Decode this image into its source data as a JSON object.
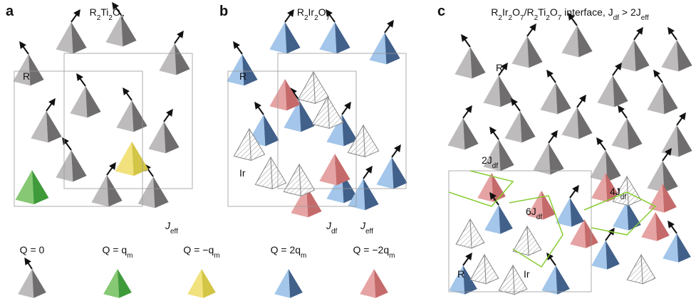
{
  "panels": [
    {
      "label": "a",
      "title": [
        "R",
        "2",
        "Ti",
        "2",
        "O",
        "7"
      ],
      "site": [
        "R"
      ],
      "coupling": [
        "J",
        "eff"
      ]
    },
    {
      "label": "b",
      "title": [
        "R",
        "2",
        "Ir",
        "2",
        "O",
        "7"
      ],
      "site": [
        "R"
      ],
      "site2": [
        "Ir"
      ],
      "coupling": [
        "J",
        "df"
      ],
      "coupling2": [
        "J",
        "eff"
      ]
    },
    {
      "label": "c",
      "title": [
        "R",
        "2",
        "Ir",
        "2",
        "O",
        "7",
        "/R",
        "2",
        "Ti",
        "2",
        "O",
        "7",
        " interface, J",
        "df",
        " > 2J",
        "eff"
      ],
      "site": [
        "R"
      ],
      "site_lower": [
        "R"
      ],
      "site2": [
        "Ir"
      ],
      "couplings": [
        [
          "2J",
          "df"
        ],
        [
          "4J",
          "df"
        ],
        [
          "6J",
          "df"
        ]
      ]
    }
  ],
  "charges": [
    [
      "Q = 0"
    ],
    [
      "Q = q",
      "m"
    ],
    [
      "Q = −q",
      "m"
    ],
    [
      "Q = 2q",
      "m"
    ],
    [
      "Q = −2q",
      "m"
    ]
  ]
}
